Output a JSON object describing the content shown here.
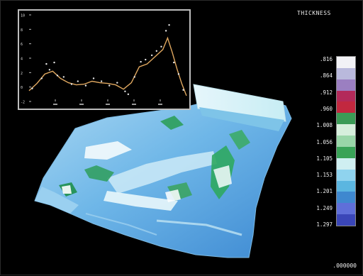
{
  "legend": {
    "title": "THICKNESS",
    "labels": [
      ".816",
      ".864",
      ".912",
      ".960",
      "1.008",
      "1.056",
      "1.105",
      "1.153",
      "1.201",
      "1.249",
      "1.297"
    ],
    "colors": [
      "#f2f2f6",
      "#b9b9dc",
      "#9b7fc1",
      "#b32a5a",
      "#c2283f",
      "#3b9b56",
      "#d6efdc",
      "#99d6a8",
      "#39a357",
      "#cfeff1",
      "#8fd3ee",
      "#5bb6e0",
      "#3f88cf",
      "#5f6fd9",
      "#3a46b8"
    ]
  },
  "footer": {
    "value": ".000000"
  },
  "inset_chart": {
    "y_ticks": [
      "10",
      "8",
      "6",
      "4",
      "2",
      "0",
      "-2"
    ],
    "x_ticks": [
      "",
      "",
      "",
      "",
      ""
    ]
  },
  "chart_data": {
    "type": "line",
    "ylim": [
      -2,
      10
    ],
    "xlim": [
      0,
      100
    ],
    "series": [
      {
        "values": [
          [
            0,
            -0.5
          ],
          [
            5,
            0.5
          ],
          [
            10,
            1.8
          ],
          [
            15,
            2.2
          ],
          [
            20,
            1.2
          ],
          [
            25,
            0.6
          ],
          [
            30,
            0.3
          ],
          [
            35,
            0.4
          ],
          [
            40,
            0.8
          ],
          [
            45,
            0.6
          ],
          [
            50,
            0.5
          ],
          [
            55,
            0.3
          ],
          [
            60,
            -0.3
          ],
          [
            65,
            0.6
          ],
          [
            70,
            2.8
          ],
          [
            75,
            3.2
          ],
          [
            80,
            4.2
          ],
          [
            85,
            5.2
          ],
          [
            88,
            6.8
          ],
          [
            91,
            4.8
          ],
          [
            94,
            2.5
          ],
          [
            97,
            0.5
          ],
          [
            100,
            -1.2
          ]
        ]
      }
    ],
    "points": [
      [
        2,
        -0.2
      ],
      [
        8,
        1.2
      ],
      [
        11,
        3.2
      ],
      [
        13,
        2.4
      ],
      [
        16,
        3.4
      ],
      [
        18,
        1.6
      ],
      [
        22,
        1.4
      ],
      [
        27,
        0.4
      ],
      [
        31,
        0.8
      ],
      [
        36,
        0.2
      ],
      [
        41,
        1.2
      ],
      [
        46,
        0.8
      ],
      [
        51,
        0.2
      ],
      [
        56,
        0.6
      ],
      [
        61,
        -0.6
      ],
      [
        63,
        -1.0
      ],
      [
        67,
        1.4
      ],
      [
        71,
        3.5
      ],
      [
        74,
        3.8
      ],
      [
        78,
        4.4
      ],
      [
        81,
        5.0
      ],
      [
        84,
        5.6
      ],
      [
        87,
        7.8
      ],
      [
        89,
        8.6
      ],
      [
        92,
        3.4
      ],
      [
        95,
        1.8
      ],
      [
        98,
        -0.4
      ]
    ]
  }
}
